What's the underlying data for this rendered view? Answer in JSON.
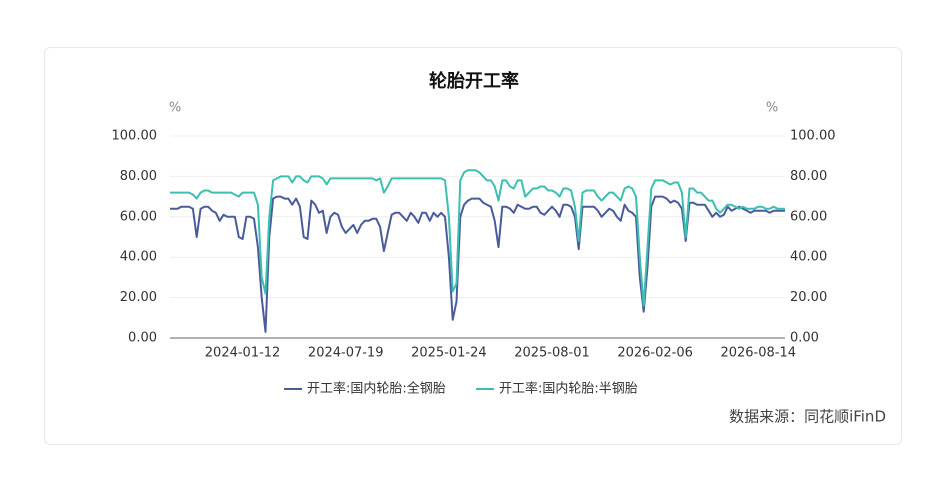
{
  "chart_data": {
    "type": "line",
    "title": "轮胎开工率",
    "y_unit": "%",
    "y2_unit": "%",
    "source": "数据来源：同花顺iFinD",
    "categories": [
      null,
      null,
      null,
      null,
      null,
      null,
      null,
      null,
      null,
      null,
      null,
      null,
      null,
      null,
      null,
      null,
      null,
      null,
      null,
      "2024-01-12",
      null,
      null,
      null,
      null,
      null,
      null,
      null,
      null,
      null,
      null,
      null,
      null,
      null,
      null,
      null,
      null,
      null,
      null,
      null,
      null,
      null,
      null,
      null,
      null,
      null,
      null,
      "2024-07-19",
      null,
      null,
      null,
      null,
      null,
      null,
      null,
      null,
      null,
      null,
      null,
      null,
      null,
      null,
      null,
      null,
      null,
      null,
      null,
      null,
      null,
      null,
      null,
      null,
      null,
      null,
      "2025-01-24",
      null,
      null,
      null,
      null,
      null,
      null,
      null,
      null,
      null,
      null,
      null,
      null,
      null,
      null,
      null,
      null,
      null,
      null,
      null,
      null,
      null,
      null,
      null,
      null,
      null,
      null,
      "2025-08-01",
      null,
      null,
      null,
      null,
      null,
      null,
      null,
      null,
      null,
      null,
      null,
      null,
      null,
      null,
      null,
      null,
      null,
      null,
      null,
      null,
      null,
      null,
      null,
      null,
      null,
      null,
      "2026-02-06",
      null,
      null,
      null,
      null,
      null,
      null,
      null,
      null,
      null,
      null,
      null,
      null,
      null,
      null,
      null,
      null,
      null,
      null,
      null,
      null,
      null,
      null,
      null,
      null,
      null,
      null,
      "2026-08-14",
      null,
      null,
      null,
      null,
      null,
      null,
      null
    ],
    "series": [
      {
        "name": "开工率:国内轮胎:全钢胎",
        "color": "#4a5b9c",
        "values": [
          64,
          64,
          64,
          65,
          65,
          65,
          64,
          50,
          64,
          65,
          65,
          63,
          62,
          58,
          61,
          60,
          60,
          60,
          50,
          49,
          60,
          60,
          59,
          45,
          20,
          3,
          50,
          69,
          70,
          70,
          69,
          69,
          66,
          69,
          65,
          50,
          49,
          68,
          66,
          62,
          63,
          52,
          60,
          62,
          61,
          55,
          52,
          54,
          56,
          52,
          56,
          58,
          58,
          59,
          59,
          55,
          43,
          52,
          61,
          62,
          62,
          60,
          58,
          62,
          60,
          57,
          62,
          62,
          58,
          62,
          60,
          62,
          60,
          40,
          9,
          18,
          60,
          66,
          68,
          69,
          69,
          69,
          67,
          66,
          65,
          58,
          45,
          65,
          65,
          64,
          62,
          66,
          65,
          64,
          64,
          65,
          65,
          62,
          61,
          63,
          65,
          63,
          60,
          66,
          66,
          65,
          60,
          44,
          65,
          65,
          65,
          65,
          63,
          60,
          62,
          64,
          63,
          60,
          58,
          66,
          63,
          62,
          60,
          30,
          13,
          35,
          65,
          70,
          70,
          70,
          69,
          67,
          68,
          67,
          64,
          48,
          67,
          67,
          66,
          66,
          66,
          63,
          60,
          62,
          60,
          61,
          65,
          63,
          64,
          65,
          64,
          63,
          62,
          63,
          63,
          63,
          63,
          62,
          63,
          63,
          63,
          63
        ]
      },
      {
        "name": "开工率:国内轮胎:半钢胎",
        "color": "#3cbfb0",
        "axis": "y2",
        "values": [
          72,
          72,
          72,
          72,
          72,
          72,
          71,
          69,
          72,
          73,
          73,
          72,
          72,
          72,
          72,
          72,
          72,
          71,
          70,
          72,
          72,
          72,
          72,
          66,
          30,
          22,
          60,
          78,
          79,
          80,
          80,
          80,
          77,
          80,
          80,
          78,
          77,
          80,
          80,
          80,
          79,
          76,
          79,
          79,
          79,
          79,
          79,
          79,
          79,
          79,
          79,
          79,
          79,
          79,
          78,
          79,
          72,
          75,
          79,
          79,
          79,
          79,
          79,
          79,
          79,
          79,
          79,
          79,
          79,
          79,
          79,
          79,
          78,
          60,
          23,
          27,
          78,
          82,
          83,
          83,
          83,
          82,
          80,
          78,
          78,
          75,
          68,
          78,
          78,
          75,
          74,
          78,
          78,
          70,
          72,
          74,
          74,
          75,
          75,
          73,
          73,
          72,
          70,
          74,
          74,
          73,
          65,
          48,
          72,
          73,
          73,
          73,
          70,
          68,
          70,
          72,
          72,
          70,
          68,
          74,
          75,
          74,
          70,
          40,
          16,
          45,
          74,
          78,
          78,
          78,
          77,
          76,
          77,
          77,
          72,
          50,
          74,
          74,
          72,
          72,
          70,
          68,
          68,
          64,
          62,
          64,
          66,
          66,
          65,
          64,
          65,
          64,
          64,
          64,
          65,
          65,
          64,
          64,
          65,
          64,
          64,
          64
        ]
      }
    ],
    "ylim": [
      0,
      100
    ],
    "yticks": [
      {
        "value": 0,
        "label": "0.00"
      },
      {
        "value": 20,
        "label": "20.00"
      },
      {
        "value": 40,
        "label": "40.00"
      },
      {
        "value": 60,
        "label": "60.00"
      },
      {
        "value": 80,
        "label": "80.00"
      },
      {
        "value": 100,
        "label": "100.00"
      }
    ],
    "y2lim": [
      0,
      100
    ],
    "y2ticks": [
      {
        "value": 0,
        "label": "0.00"
      },
      {
        "value": 20,
        "label": "20.00"
      },
      {
        "value": 40,
        "label": "40.00"
      },
      {
        "value": 60,
        "label": "60.00"
      },
      {
        "value": 80,
        "label": "80.00"
      },
      {
        "value": 100,
        "label": "100.00"
      }
    ],
    "grid": true
  }
}
